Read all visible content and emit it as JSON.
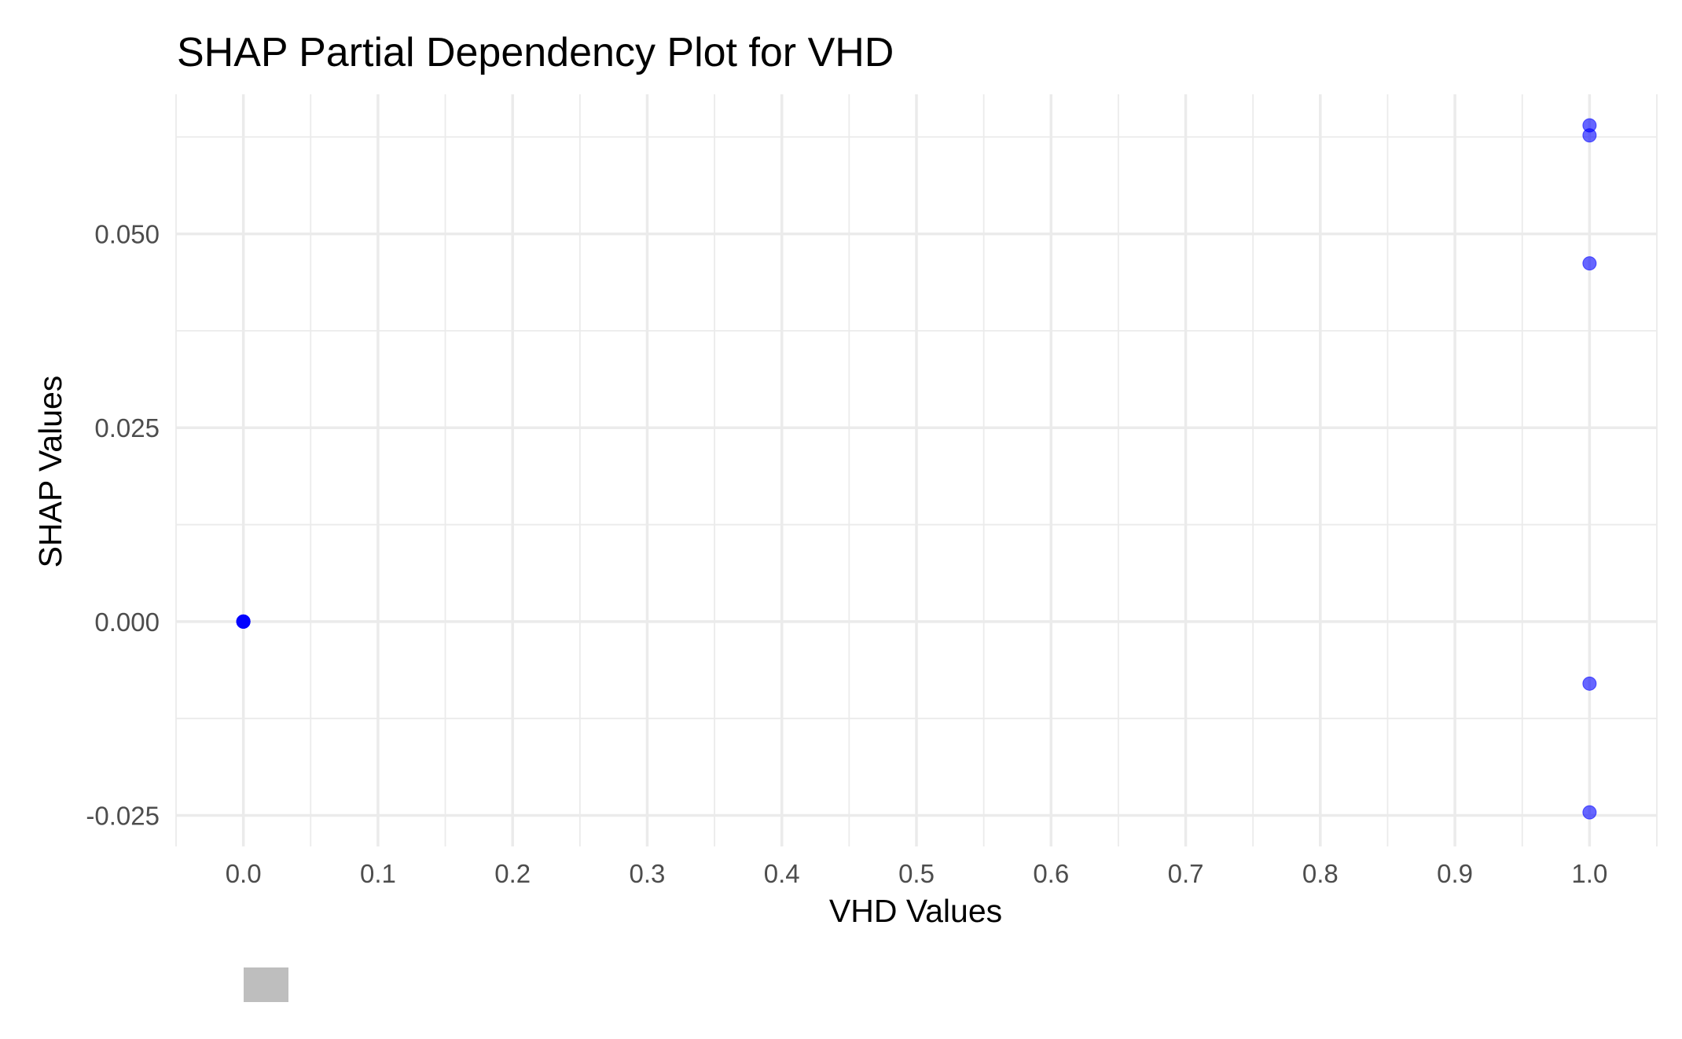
{
  "chart_data": {
    "type": "scatter",
    "title": "SHAP Partial Dependency Plot for VHD",
    "xlabel": "VHD Values",
    "ylabel": "SHAP Values",
    "xlim": [
      -0.05,
      1.05
    ],
    "ylim": [
      -0.029,
      0.068
    ],
    "x_ticks": [
      0.0,
      0.1,
      0.2,
      0.3,
      0.4,
      0.5,
      0.6,
      0.7,
      0.8,
      0.9,
      1.0
    ],
    "x_tick_labels": [
      "0.0",
      "0.1",
      "0.2",
      "0.3",
      "0.4",
      "0.5",
      "0.6",
      "0.7",
      "0.8",
      "0.9",
      "1.0"
    ],
    "y_ticks": [
      -0.025,
      0.0,
      0.025,
      0.05
    ],
    "y_tick_labels": [
      "-0.025",
      "0.000",
      "0.025",
      "0.050"
    ],
    "grid": true,
    "point_color": "#0000ff",
    "point_opacity": 0.6,
    "legend_swatch_color": "#bebebe",
    "points": [
      {
        "x": 0.0,
        "y": 0.0
      },
      {
        "x": 0.0,
        "y": 0.0
      },
      {
        "x": 0.0,
        "y": 0.0
      },
      {
        "x": 0.0,
        "y": 0.0
      },
      {
        "x": 0.0,
        "y": 0.0
      },
      {
        "x": 1.0,
        "y": 0.064
      },
      {
        "x": 1.0,
        "y": 0.0627
      },
      {
        "x": 1.0,
        "y": 0.0462
      },
      {
        "x": 1.0,
        "y": -0.008
      },
      {
        "x": 1.0,
        "y": -0.0246
      }
    ]
  }
}
